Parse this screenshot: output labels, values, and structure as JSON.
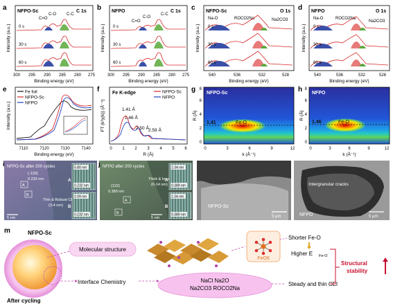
{
  "panel_letters": [
    "a",
    "b",
    "c",
    "d",
    "e",
    "f",
    "g",
    "h",
    "i",
    "j",
    "k",
    "l",
    "m"
  ],
  "panel_a": {
    "sample": "NFPO-Sc",
    "edge": "C 1s",
    "peaks": [
      "C=O",
      "C-O",
      "C-C"
    ],
    "times": [
      "0 s",
      "30 s",
      "60 s"
    ],
    "xlabel": "Binding energy (eV)",
    "ylabel": "Intensity (a.u.)",
    "xticks": [
      "300",
      "295",
      "290",
      "285",
      "280",
      "275"
    ]
  },
  "panel_b": {
    "sample": "NFPO",
    "edge": "C 1s",
    "peaks": [
      "C=O",
      "C-O",
      "C-C"
    ],
    "times": [
      "0 s",
      "30 s",
      "60 s"
    ],
    "xlabel": "Binding energy (eV)",
    "ylabel": "Intensity (a.u.)",
    "xticks": [
      "300",
      "295",
      "290",
      "285",
      "280",
      "275"
    ]
  },
  "panel_c": {
    "sample": "NFPO-Sc",
    "edge": "O 1s",
    "peaks": [
      "Na-O",
      "ROCO2Na",
      "Na2CO3"
    ],
    "times": [
      "0 s",
      "30 s",
      "60 s"
    ],
    "xlabel": "Binding energy (eV)",
    "ylabel": "Intensity (a.u.)",
    "xticks": [
      "540",
      "536",
      "532",
      "528"
    ]
  },
  "panel_d": {
    "sample": "NFPO",
    "edge": "O 1s",
    "peaks": [
      "Na-O",
      "ROCO2Na",
      "Na2CO3"
    ],
    "times": [
      "0 s",
      "30 s",
      "60 s"
    ],
    "xlabel": "Binding energy (eV)",
    "ylabel": "Intensity (a.u.)",
    "xticks": [
      "540",
      "536",
      "532",
      "528"
    ]
  },
  "panel_e": {
    "legend": [
      "Fe foil",
      "NFPO-Sc",
      "NFPO"
    ],
    "xlabel": "Binding energy (eV)",
    "ylabel": "Intensity (a.u.)",
    "xticks": [
      "7110",
      "7120",
      "7130",
      "7140"
    ],
    "colors": [
      "#111111",
      "#d62728",
      "#1f3fbf"
    ]
  },
  "panel_f": {
    "title": "Fe K-edge",
    "legend": [
      "NFPO-Sc",
      "NFPO"
    ],
    "annotations": [
      "1.41 Å",
      "1.46 Å",
      "2.50 Å",
      "2.59 Å"
    ],
    "xlabel": "R (Å)",
    "ylabel": "FT (k³χ(k)) (Å⁻⁴)",
    "xticks": [
      "0",
      "1",
      "2",
      "3",
      "4",
      "5",
      "6"
    ]
  },
  "panel_g": {
    "sample": "NFPO-Sc",
    "r_value": "1.41",
    "bond": "Fe-O",
    "xlabel": "k (Å⁻¹)",
    "ylabel": "R (Å)",
    "xticks": [
      "0",
      "3",
      "6",
      "9",
      "12"
    ],
    "yticks": [
      "0",
      "2",
      "4",
      "6",
      "8"
    ]
  },
  "panel_h": {
    "sample": "NFPO",
    "r_value": "1.46",
    "bond": "Fe-O",
    "xlabel": "k (Å⁻¹)",
    "ylabel": "R (Å)",
    "xticks": [
      "0",
      "3",
      "6",
      "9",
      "12"
    ],
    "yticks": [
      "0",
      "2",
      "4",
      "6",
      "8"
    ]
  },
  "panel_i": {
    "title": "NFPO-Sc after 200 cycles",
    "plane": "(-133)",
    "d_spacing": "0.232 nm",
    "cei_label": "Thin & Robust CEI",
    "cei_thickness": "(3-4 nm)",
    "region_a": "A",
    "region_b": "B",
    "inset_a_top": "5.80 nm",
    "inset_a_bottom": "0.232 nm",
    "inset_b_top": "2.09 nm",
    "inset_b_bottom": "0.232 nm",
    "scale": "5 nm"
  },
  "panel_j": {
    "title": "NFPO after 200 cycles",
    "plane": "(122)",
    "d_spacing": "0.389 nm",
    "cei_label": "Thick & loose CEI",
    "cei_thickness": "(6-14 nm)",
    "region_a": "A",
    "region_b": "B",
    "inset_a_top": "2.34 nm",
    "inset_a_bottom": "0.389 nm",
    "inset_b_top": "2.34 nm",
    "inset_b_bottom": "0.389 nm",
    "scale": "5 nm"
  },
  "panel_k": {
    "label": "NFPO-Sc",
    "scale": "5 μm"
  },
  "panel_l": {
    "label": "NFPO",
    "annotation": "Intergranular cracks",
    "scale": "5 μm"
  },
  "panel_m": {
    "sample": "NFPO-Sc",
    "after": "After cycling",
    "molecular": "Molecular structure",
    "interface": "Interface Chemistry",
    "feo6": "FeO6",
    "shorter": "Shorter Fe-O",
    "higher": "Higher E",
    "higher_sub": "Fe-O",
    "cei_species_1": "NaCl Na2O",
    "cei_species_2": "Na2CO3 ROCO2Na",
    "steady": "Steady and thin CEI",
    "stability_1": "Structural",
    "stability_2": "stability"
  },
  "colors": {
    "red": "#d62728",
    "blue": "#3a4fa8",
    "green": "#5aa83a",
    "pink": "#e8a0d8",
    "dark_red": "#c8102e"
  }
}
